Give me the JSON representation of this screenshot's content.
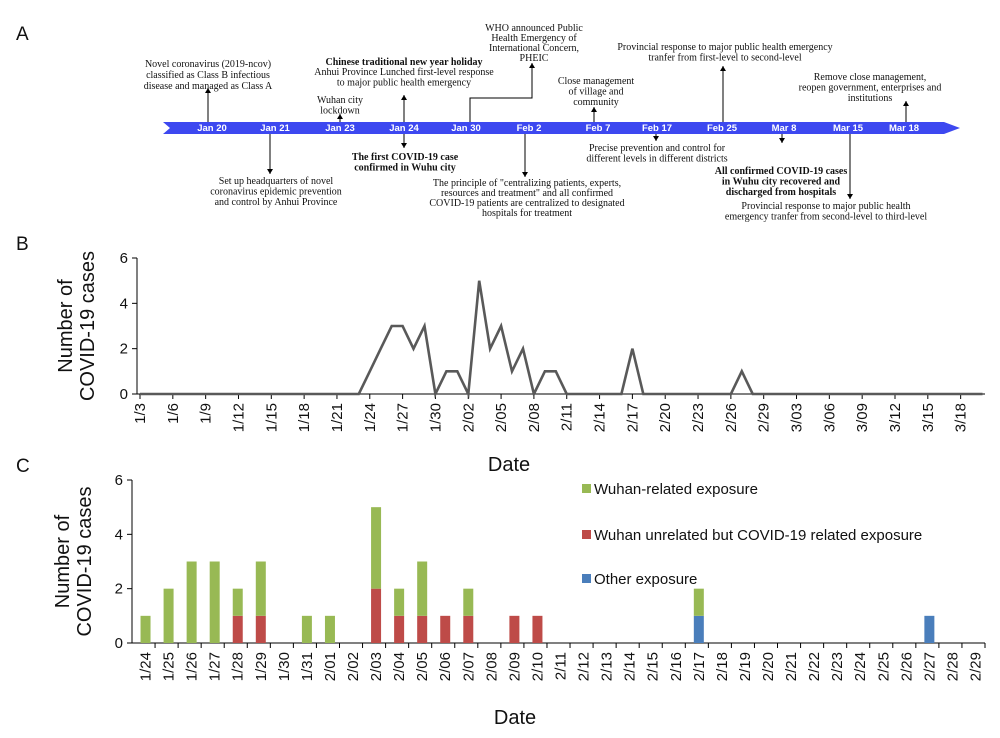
{
  "panels": {
    "a": "A",
    "b": "B",
    "c": "C"
  },
  "timeline": {
    "arrow_color": "#3d48f0",
    "dates": [
      "Jan 20",
      "Jan 21",
      "Jan 23",
      "Jan 24",
      "Jan 30",
      "Feb 2",
      "Feb 7",
      "Feb 17",
      "Feb 25",
      "Mar 8",
      "Mar 15",
      "Mar 18"
    ],
    "events": [
      {
        "lines": [
          "Novel coronavirus (2019-ncov)",
          "classified as Class B infectious",
          "disease and managed as Class A"
        ],
        "bold": false
      },
      {
        "lines": [
          "Set up headquarters of novel",
          "coronavirus epidemic prevention",
          "and control by Anhui Province"
        ],
        "bold": false
      },
      {
        "lines": [
          "Wuhan city",
          "lockdown"
        ],
        "bold": false
      },
      {
        "lines": [
          "Chinese traditional new year holiday"
        ],
        "bold": true
      },
      {
        "lines": [
          "Anhui Province Lunched first-level response",
          "to major public health emergency"
        ],
        "bold": false
      },
      {
        "lines": [
          "The first COVID-19 case",
          "confirmed in Wuhu city"
        ],
        "bold": true
      },
      {
        "lines": [
          "WHO announced Public",
          "Health Emergency of",
          "International Concern,",
          "PHEIC"
        ],
        "bold": false
      },
      {
        "lines": [
          "The principle of \"centralizing patients, experts,",
          "resources and treatment\" and all confirmed",
          "COVID-19  patients are centralized to designated",
          "hospitals for treatment"
        ],
        "bold": false
      },
      {
        "lines": [
          "Close management",
          "of village and",
          "community"
        ],
        "bold": false
      },
      {
        "lines": [
          "Precise prevention and control for",
          "different levels in different districts"
        ],
        "bold": false
      },
      {
        "lines": [
          "Provincial response to major public health emergency",
          "tranfer from first-level to second-level"
        ],
        "bold": false
      },
      {
        "lines": [
          "All confirmed COVID-19 cases",
          "in Wuhu city recovered and",
          "discharged from hospitals"
        ],
        "bold": true
      },
      {
        "lines": [
          "Provincial response to major public health",
          "emergency tranfer from second-level to third-level"
        ],
        "bold": false
      },
      {
        "lines": [
          "Remove close management,",
          "reopen government, enterprises and",
          "institutions"
        ],
        "bold": false
      }
    ]
  },
  "chart_data": [
    {
      "type": "line",
      "color": "#595959",
      "ylabel": [
        "Number of",
        "COVID-19 cases"
      ],
      "xlabel": "Date",
      "ylim": [
        0,
        6
      ],
      "yticks": [
        0,
        2,
        4,
        6
      ],
      "xtick_labels": [
        "1/3",
        "1/6",
        "1/9",
        "1/12",
        "1/15",
        "1/18",
        "1/21",
        "1/24",
        "1/27",
        "1/30",
        "2/02",
        "2/05",
        "2/08",
        "2/11",
        "2/14",
        "2/17",
        "2/20",
        "2/23",
        "2/26",
        "2/29",
        "3/03",
        "3/06",
        "3/09",
        "3/12",
        "3/15",
        "3/18"
      ],
      "x": [
        "1/3",
        "1/4",
        "1/5",
        "1/6",
        "1/7",
        "1/8",
        "1/9",
        "1/10",
        "1/11",
        "1/12",
        "1/13",
        "1/14",
        "1/15",
        "1/16",
        "1/17",
        "1/18",
        "1/19",
        "1/20",
        "1/21",
        "1/22",
        "1/23",
        "1/24",
        "1/25",
        "1/26",
        "1/27",
        "1/28",
        "1/29",
        "1/30",
        "1/31",
        "2/01",
        "2/02",
        "2/03",
        "2/04",
        "2/05",
        "2/06",
        "2/07",
        "2/08",
        "2/09",
        "2/10",
        "2/11",
        "2/12",
        "2/13",
        "2/14",
        "2/15",
        "2/16",
        "2/17",
        "2/18",
        "2/19",
        "2/20",
        "2/21",
        "2/22",
        "2/23",
        "2/24",
        "2/25",
        "2/26",
        "2/27",
        "2/28",
        "2/29",
        "3/01",
        "3/02",
        "3/03",
        "3/04",
        "3/05",
        "3/06",
        "3/07",
        "3/08",
        "3/09",
        "3/10",
        "3/11",
        "3/12",
        "3/13",
        "3/14",
        "3/15",
        "3/16",
        "3/17",
        "3/18",
        "3/19",
        "3/20"
      ],
      "values": [
        0,
        0,
        0,
        0,
        0,
        0,
        0,
        0,
        0,
        0,
        0,
        0,
        0,
        0,
        0,
        0,
        0,
        0,
        0,
        0,
        0,
        1,
        2,
        3,
        3,
        2,
        3,
        0,
        1,
        1,
        0,
        5,
        2,
        3,
        1,
        2,
        0,
        1,
        1,
        0,
        0,
        0,
        0,
        0,
        0,
        2,
        0,
        0,
        0,
        0,
        0,
        0,
        0,
        0,
        0,
        1,
        0,
        0,
        0,
        0,
        0,
        0,
        0,
        0,
        0,
        0,
        0,
        0,
        0,
        0,
        0,
        0,
        0,
        0,
        0,
        0,
        0,
        0
      ]
    },
    {
      "type": "bar",
      "stacked": true,
      "ylabel": [
        "Number of",
        "COVID-19 cases"
      ],
      "xlabel": "Date",
      "ylim": [
        0,
        6
      ],
      "yticks": [
        0,
        2,
        4,
        6
      ],
      "legend_position": "right",
      "categories": [
        "1/24",
        "1/25",
        "1/26",
        "1/27",
        "1/28",
        "1/29",
        "1/30",
        "1/31",
        "2/01",
        "2/02",
        "2/03",
        "2/04",
        "2/05",
        "2/06",
        "2/07",
        "2/08",
        "2/09",
        "2/10",
        "2/11",
        "2/12",
        "2/13",
        "2/14",
        "2/15",
        "2/16",
        "2/17",
        "2/18",
        "2/19",
        "2/20",
        "2/21",
        "2/22",
        "2/23",
        "2/24",
        "2/25",
        "2/26",
        "2/27",
        "2/28",
        "2/29"
      ],
      "series": [
        {
          "name": "Other exposure",
          "color": "#4a7ebb",
          "values": [
            0,
            0,
            0,
            0,
            0,
            0,
            0,
            0,
            0,
            0,
            0,
            0,
            0,
            0,
            0,
            0,
            0,
            0,
            0,
            0,
            0,
            0,
            0,
            0,
            1,
            0,
            0,
            0,
            0,
            0,
            0,
            0,
            0,
            0,
            1,
            0,
            0
          ]
        },
        {
          "name": "Wuhan unrelated but COVID-19 related exposure",
          "color": "#be4b48",
          "values": [
            0,
            0,
            0,
            0,
            1,
            1,
            0,
            0,
            0,
            0,
            2,
            1,
            1,
            1,
            1,
            0,
            1,
            1,
            0,
            0,
            0,
            0,
            0,
            0,
            0,
            0,
            0,
            0,
            0,
            0,
            0,
            0,
            0,
            0,
            0,
            0,
            0
          ]
        },
        {
          "name": "Wuhan-related exposure",
          "color": "#98b954",
          "values": [
            1,
            2,
            3,
            3,
            1,
            2,
            0,
            1,
            1,
            0,
            3,
            1,
            2,
            0,
            1,
            0,
            0,
            0,
            0,
            0,
            0,
            0,
            0,
            0,
            1,
            0,
            0,
            0,
            0,
            0,
            0,
            0,
            0,
            0,
            0,
            0,
            0
          ]
        }
      ],
      "legend_order": [
        "Wuhan-related exposure",
        "Wuhan unrelated but COVID-19 related exposure",
        "Other exposure"
      ]
    }
  ]
}
